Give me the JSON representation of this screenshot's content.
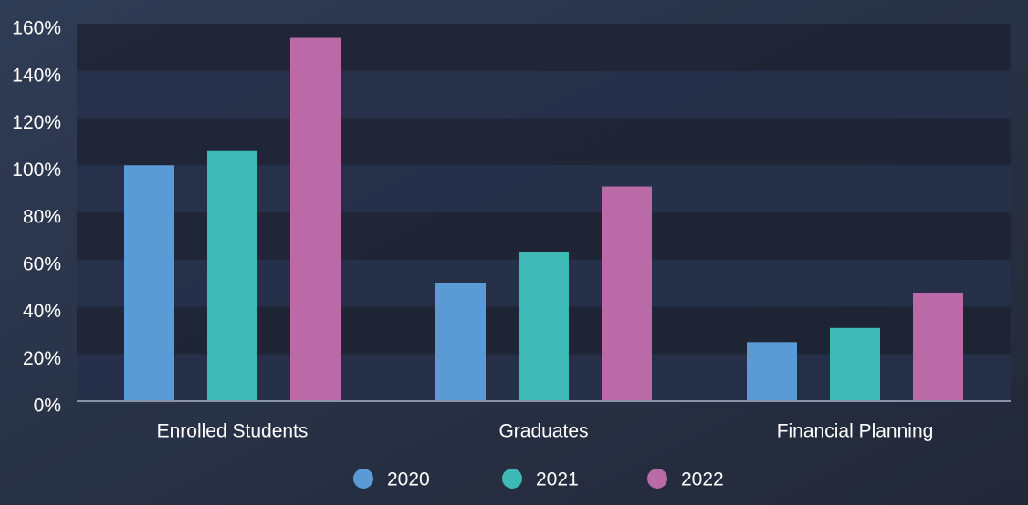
{
  "chart_data": {
    "type": "bar",
    "categories": [
      "Enrolled Students",
      "Graduates",
      "Financial Planning"
    ],
    "series": [
      {
        "name": "2020",
        "color": "#5b9bd5",
        "values": [
          100,
          50,
          25
        ]
      },
      {
        "name": "2021",
        "color": "#3dbab5",
        "values": [
          106,
          63,
          31
        ]
      },
      {
        "name": "2022",
        "color": "#bb6aa8",
        "values": [
          154,
          91,
          46
        ]
      }
    ],
    "ylim": [
      0,
      160
    ],
    "yticks": [
      {
        "value": 0,
        "label": "0%"
      },
      {
        "value": 20,
        "label": "20%"
      },
      {
        "value": 40,
        "label": "40%"
      },
      {
        "value": 60,
        "label": "60%"
      },
      {
        "value": 80,
        "label": "80%"
      },
      {
        "value": 100,
        "label": "100%"
      },
      {
        "value": 120,
        "label": "120%"
      },
      {
        "value": 140,
        "label": "140%"
      },
      {
        "value": 160,
        "label": "160%"
      }
    ],
    "grid": true
  }
}
